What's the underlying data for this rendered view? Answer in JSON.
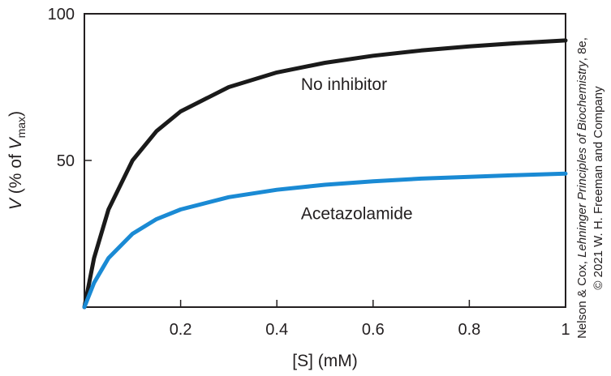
{
  "chart_data": {
    "type": "line",
    "title": "",
    "xlabel": "[S] (mM)",
    "ylabel": {
      "prefix": "V",
      "middle": " (% of ",
      "vsym": "V",
      "sub": "max",
      "suffix": ")"
    },
    "xlim": [
      0,
      1
    ],
    "ylim": [
      0,
      100
    ],
    "x_ticks": [
      {
        "value": 0.2,
        "label": "0.2"
      },
      {
        "value": 0.4,
        "label": "0.4"
      },
      {
        "value": 0.6,
        "label": "0.6"
      },
      {
        "value": 0.8,
        "label": "0.8"
      },
      {
        "value": 1.0,
        "label": "1"
      }
    ],
    "y_ticks": [
      {
        "value": 50,
        "label": "50"
      },
      {
        "value": 100,
        "label": "100"
      }
    ],
    "grid": false,
    "legend": "none",
    "series": [
      {
        "name": "No inhibitor",
        "color": "#1a1a1a",
        "label_at": {
          "x": 0.45,
          "y": 74
        },
        "x": [
          0,
          0.02,
          0.05,
          0.1,
          0.15,
          0.2,
          0.3,
          0.4,
          0.5,
          0.6,
          0.7,
          0.8,
          0.9,
          1.0
        ],
        "y": [
          0,
          16.7,
          33.3,
          50.0,
          60.0,
          66.7,
          75.0,
          80.0,
          83.3,
          85.7,
          87.5,
          88.9,
          90.0,
          90.9
        ]
      },
      {
        "name": "Acetazolamide",
        "color": "#1a8ad4",
        "label_at": {
          "x": 0.45,
          "y": 30
        },
        "x": [
          0,
          0.02,
          0.05,
          0.1,
          0.15,
          0.2,
          0.3,
          0.4,
          0.5,
          0.6,
          0.7,
          0.8,
          0.9,
          1.0
        ],
        "y": [
          0,
          8.3,
          16.7,
          25.0,
          30.0,
          33.3,
          37.5,
          40.0,
          41.7,
          42.9,
          43.8,
          44.4,
          45.0,
          45.5
        ]
      }
    ]
  },
  "credit": {
    "line1_prefix": "Nelson & Cox, ",
    "line1_italic": "Lehninger Principles of Biochemistry",
    "line1_suffix": ", 8e,",
    "line2": "© 2021 W. H. Freeman and Company"
  }
}
